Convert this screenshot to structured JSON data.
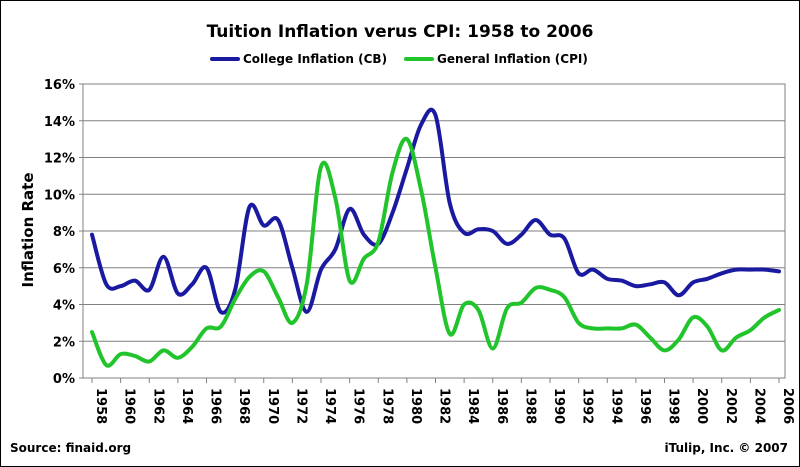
{
  "chart_data": {
    "type": "line",
    "title": "Tuition Inflation verus CPI: 1958 to 2006",
    "ylabel": "Inflation Rate",
    "xlabel": "",
    "ylim": [
      0,
      16
    ],
    "xlim": [
      1958,
      2006
    ],
    "ytick_labels": [
      "0%",
      "2%",
      "4%",
      "6%",
      "8%",
      "10%",
      "12%",
      "14%",
      "16%"
    ],
    "xtick_labels": [
      "1958",
      "1960",
      "1962",
      "1964",
      "1966",
      "1968",
      "1970",
      "1972",
      "1974",
      "1976",
      "1978",
      "1980",
      "1982",
      "1984",
      "1986",
      "1988",
      "1990",
      "1992",
      "1994",
      "1996",
      "1998",
      "2000",
      "2002",
      "2004",
      "2006"
    ],
    "grid": "horizontal",
    "legend_position": "top",
    "x": [
      1958,
      1959,
      1960,
      1961,
      1962,
      1963,
      1964,
      1965,
      1966,
      1967,
      1968,
      1969,
      1970,
      1971,
      1972,
      1973,
      1974,
      1975,
      1976,
      1977,
      1978,
      1979,
      1980,
      1981,
      1982,
      1983,
      1984,
      1985,
      1986,
      1987,
      1988,
      1989,
      1990,
      1991,
      1992,
      1993,
      1994,
      1995,
      1996,
      1997,
      1998,
      1999,
      2000,
      2001,
      2002,
      2003,
      2004,
      2005,
      2006
    ],
    "series": [
      {
        "name": "College Inflation (CB)",
        "color": "#1a1aa0",
        "values": [
          7.8,
          5.1,
          5.0,
          5.3,
          4.8,
          6.6,
          4.6,
          5.1,
          6.0,
          3.6,
          4.8,
          9.3,
          8.3,
          8.6,
          6.0,
          3.6,
          5.9,
          7.0,
          9.2,
          7.8,
          7.3,
          9.0,
          11.4,
          13.8,
          14.3,
          9.5,
          7.9,
          8.1,
          8.0,
          7.3,
          7.8,
          8.6,
          7.8,
          7.6,
          5.7,
          5.9,
          5.4,
          5.3,
          5.0,
          5.1,
          5.2,
          4.5,
          5.2,
          5.4,
          5.7,
          5.9,
          5.9,
          5.9,
          5.8
        ]
      },
      {
        "name": "General Inflation (CPI)",
        "color": "#22c42c",
        "values": [
          2.5,
          0.7,
          1.3,
          1.2,
          0.9,
          1.5,
          1.1,
          1.7,
          2.7,
          2.8,
          4.3,
          5.5,
          5.8,
          4.4,
          3.0,
          5.1,
          11.5,
          9.8,
          5.3,
          6.5,
          7.4,
          11.2,
          13.0,
          10.2,
          6.0,
          2.4,
          4.0,
          3.7,
          1.6,
          3.8,
          4.1,
          4.9,
          4.8,
          4.4,
          3.0,
          2.7,
          2.7,
          2.7,
          2.9,
          2.2,
          1.5,
          2.1,
          3.3,
          2.8,
          1.5,
          2.2,
          2.6,
          3.3,
          3.7
        ]
      }
    ]
  },
  "footer": {
    "source": "Source: finaid.org",
    "copyright": "iTulip, Inc. © 2007"
  }
}
